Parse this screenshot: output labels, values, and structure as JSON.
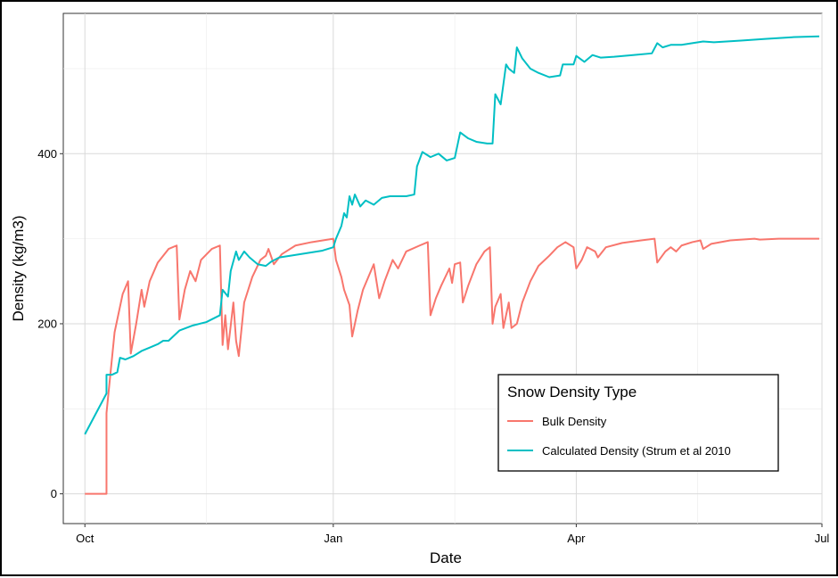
{
  "chart_data": {
    "type": "line",
    "title": "",
    "xlabel": "Date",
    "ylabel": "Density (kg/m3)",
    "x_ticks": [
      "Oct",
      "Jan",
      "Apr",
      "Jul"
    ],
    "y_ticks": [
      0,
      200,
      400
    ],
    "xlim": [
      "2017-09-23",
      "2018-07-01"
    ],
    "ylim": [
      -35,
      565
    ],
    "grid": true,
    "legend": {
      "title": "Snow Density Type",
      "position": "bottom-right"
    },
    "series": [
      {
        "name": "Bulk Density",
        "color": "#F8766D",
        "points": [
          [
            "2017-10-01",
            0
          ],
          [
            "2017-10-09",
            0
          ],
          [
            "2017-10-09",
            95
          ],
          [
            "2017-10-12",
            190
          ],
          [
            "2017-10-15",
            235
          ],
          [
            "2017-10-17",
            250
          ],
          [
            "2017-10-18",
            165
          ],
          [
            "2017-10-20",
            200
          ],
          [
            "2017-10-22",
            240
          ],
          [
            "2017-10-23",
            220
          ],
          [
            "2017-10-25",
            250
          ],
          [
            "2017-10-28",
            272
          ],
          [
            "2017-11-01",
            288
          ],
          [
            "2017-11-04",
            292
          ],
          [
            "2017-11-05",
            205
          ],
          [
            "2017-11-07",
            240
          ],
          [
            "2017-11-09",
            262
          ],
          [
            "2017-11-11",
            250
          ],
          [
            "2017-11-13",
            275
          ],
          [
            "2017-11-17",
            288
          ],
          [
            "2017-11-20",
            292
          ],
          [
            "2017-11-21",
            175
          ],
          [
            "2017-11-22",
            210
          ],
          [
            "2017-11-23",
            170
          ],
          [
            "2017-11-25",
            225
          ],
          [
            "2017-11-26",
            180
          ],
          [
            "2017-11-27",
            162
          ],
          [
            "2017-11-29",
            225
          ],
          [
            "2017-12-02",
            255
          ],
          [
            "2017-12-05",
            275
          ],
          [
            "2017-12-07",
            280
          ],
          [
            "2017-12-08",
            288
          ],
          [
            "2017-12-10",
            270
          ],
          [
            "2017-12-13",
            282
          ],
          [
            "2017-12-18",
            292
          ],
          [
            "2017-12-24",
            296
          ],
          [
            "2018-01-01",
            300
          ],
          [
            "2018-01-02",
            275
          ],
          [
            "2018-01-04",
            255
          ],
          [
            "2018-01-05",
            240
          ],
          [
            "2018-01-07",
            222
          ],
          [
            "2018-01-08",
            185
          ],
          [
            "2018-01-10",
            215
          ],
          [
            "2018-01-12",
            240
          ],
          [
            "2018-01-14",
            255
          ],
          [
            "2018-01-16",
            270
          ],
          [
            "2018-01-17",
            250
          ],
          [
            "2018-01-18",
            230
          ],
          [
            "2018-01-20",
            250
          ],
          [
            "2018-01-23",
            275
          ],
          [
            "2018-01-25",
            265
          ],
          [
            "2018-01-28",
            285
          ],
          [
            "2018-02-02",
            292
          ],
          [
            "2018-02-05",
            296
          ],
          [
            "2018-02-06",
            210
          ],
          [
            "2018-02-08",
            230
          ],
          [
            "2018-02-10",
            245
          ],
          [
            "2018-02-13",
            265
          ],
          [
            "2018-02-14",
            248
          ],
          [
            "2018-02-15",
            270
          ],
          [
            "2018-02-17",
            272
          ],
          [
            "2018-02-18",
            225
          ],
          [
            "2018-02-20",
            245
          ],
          [
            "2018-02-23",
            270
          ],
          [
            "2018-02-26",
            285
          ],
          [
            "2018-02-28",
            290
          ],
          [
            "2018-03-01",
            200
          ],
          [
            "2018-03-02",
            220
          ],
          [
            "2018-03-04",
            235
          ],
          [
            "2018-03-05",
            195
          ],
          [
            "2018-03-07",
            225
          ],
          [
            "2018-03-08",
            195
          ],
          [
            "2018-03-10",
            200
          ],
          [
            "2018-03-12",
            225
          ],
          [
            "2018-03-15",
            250
          ],
          [
            "2018-03-18",
            268
          ],
          [
            "2018-03-22",
            280
          ],
          [
            "2018-03-25",
            290
          ],
          [
            "2018-03-28",
            296
          ],
          [
            "2018-03-31",
            290
          ],
          [
            "2018-04-01",
            265
          ],
          [
            "2018-04-03",
            275
          ],
          [
            "2018-04-05",
            290
          ],
          [
            "2018-04-08",
            285
          ],
          [
            "2018-04-09",
            278
          ],
          [
            "2018-04-12",
            290
          ],
          [
            "2018-04-18",
            295
          ],
          [
            "2018-04-25",
            298
          ],
          [
            "2018-04-30",
            300
          ],
          [
            "2018-05-01",
            272
          ],
          [
            "2018-05-04",
            285
          ],
          [
            "2018-05-06",
            290
          ],
          [
            "2018-05-08",
            285
          ],
          [
            "2018-05-10",
            292
          ],
          [
            "2018-05-14",
            296
          ],
          [
            "2018-05-17",
            298
          ],
          [
            "2018-05-18",
            288
          ],
          [
            "2018-05-21",
            294
          ],
          [
            "2018-05-28",
            298
          ],
          [
            "2018-06-06",
            300
          ],
          [
            "2018-06-08",
            299
          ],
          [
            "2018-06-15",
            300
          ],
          [
            "2018-06-30",
            300
          ]
        ]
      },
      {
        "name": "Calculated Density (Strum et al 2010",
        "color": "#00BFC4",
        "points": [
          [
            "2017-10-01",
            70
          ],
          [
            "2017-10-09",
            118
          ],
          [
            "2017-10-09",
            140
          ],
          [
            "2017-10-11",
            140
          ],
          [
            "2017-10-13",
            143
          ],
          [
            "2017-10-14",
            160
          ],
          [
            "2017-10-16",
            158
          ],
          [
            "2017-10-19",
            162
          ],
          [
            "2017-10-22",
            168
          ],
          [
            "2017-10-25",
            172
          ],
          [
            "2017-10-28",
            176
          ],
          [
            "2017-10-30",
            180
          ],
          [
            "2017-11-01",
            180
          ],
          [
            "2017-11-05",
            192
          ],
          [
            "2017-11-10",
            198
          ],
          [
            "2017-11-15",
            202
          ],
          [
            "2017-11-20",
            210
          ],
          [
            "2017-11-21",
            240
          ],
          [
            "2017-11-23",
            232
          ],
          [
            "2017-11-24",
            262
          ],
          [
            "2017-11-26",
            285
          ],
          [
            "2017-11-27",
            275
          ],
          [
            "2017-11-29",
            285
          ],
          [
            "2017-12-01",
            278
          ],
          [
            "2017-12-04",
            270
          ],
          [
            "2017-12-07",
            268
          ],
          [
            "2017-12-09",
            273
          ],
          [
            "2017-12-12",
            278
          ],
          [
            "2017-12-16",
            280
          ],
          [
            "2017-12-22",
            283
          ],
          [
            "2017-12-28",
            286
          ],
          [
            "2018-01-01",
            290
          ],
          [
            "2018-01-02",
            300
          ],
          [
            "2018-01-04",
            315
          ],
          [
            "2018-01-05",
            330
          ],
          [
            "2018-01-06",
            325
          ],
          [
            "2018-01-07",
            350
          ],
          [
            "2018-01-08",
            340
          ],
          [
            "2018-01-09",
            352
          ],
          [
            "2018-01-11",
            338
          ],
          [
            "2018-01-13",
            345
          ],
          [
            "2018-01-16",
            340
          ],
          [
            "2018-01-19",
            348
          ],
          [
            "2018-01-22",
            350
          ],
          [
            "2018-01-28",
            350
          ],
          [
            "2018-01-31",
            352
          ],
          [
            "2018-02-01",
            385
          ],
          [
            "2018-02-03",
            402
          ],
          [
            "2018-02-06",
            396
          ],
          [
            "2018-02-09",
            400
          ],
          [
            "2018-02-12",
            392
          ],
          [
            "2018-02-15",
            395
          ],
          [
            "2018-02-17",
            425
          ],
          [
            "2018-02-20",
            418
          ],
          [
            "2018-02-23",
            414
          ],
          [
            "2018-02-27",
            412
          ],
          [
            "2018-03-01",
            412
          ],
          [
            "2018-03-02",
            470
          ],
          [
            "2018-03-04",
            458
          ],
          [
            "2018-03-06",
            505
          ],
          [
            "2018-03-07",
            500
          ],
          [
            "2018-03-09",
            495
          ],
          [
            "2018-03-10",
            525
          ],
          [
            "2018-03-12",
            512
          ],
          [
            "2018-03-15",
            500
          ],
          [
            "2018-03-18",
            495
          ],
          [
            "2018-03-22",
            490
          ],
          [
            "2018-03-26",
            492
          ],
          [
            "2018-03-27",
            505
          ],
          [
            "2018-03-31",
            505
          ],
          [
            "2018-04-01",
            515
          ],
          [
            "2018-04-04",
            508
          ],
          [
            "2018-04-07",
            516
          ],
          [
            "2018-04-10",
            513
          ],
          [
            "2018-04-15",
            514
          ],
          [
            "2018-04-22",
            516
          ],
          [
            "2018-04-29",
            518
          ],
          [
            "2018-05-01",
            530
          ],
          [
            "2018-05-03",
            525
          ],
          [
            "2018-05-06",
            528
          ],
          [
            "2018-05-10",
            528
          ],
          [
            "2018-05-14",
            530
          ],
          [
            "2018-05-18",
            532
          ],
          [
            "2018-05-22",
            531
          ],
          [
            "2018-06-01",
            533
          ],
          [
            "2018-06-10",
            535
          ],
          [
            "2018-06-20",
            537
          ],
          [
            "2018-06-30",
            538
          ]
        ]
      }
    ]
  }
}
